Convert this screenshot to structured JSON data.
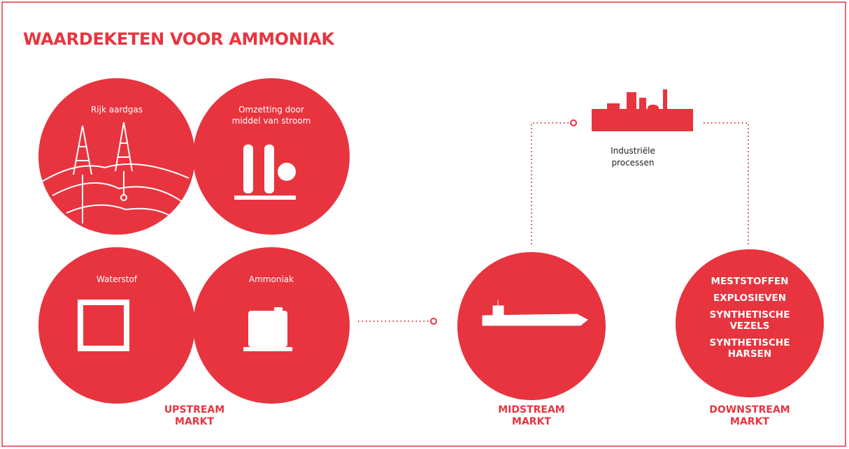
{
  "header": {
    "title": "WAARDEKETEN VOOR AMMONIAK"
  },
  "nodes": [
    {
      "label": "Rijk aardgas"
    },
    {
      "label": "Omzetting door middel van stroom"
    },
    {
      "label": "Waterstof"
    },
    {
      "label": "Ammoniak"
    },
    {
      "label": "Industriële processen"
    }
  ],
  "downstream_products": [
    "MESTSTOFFEN",
    "EXPLOSIEVEN",
    "SYNTHETISCHE VEZELS",
    "SYNTHETISCHE HARSEN"
  ],
  "markets": [
    "UPSTREAM MARKT",
    "MIDSTREAM MARKT",
    "DOWNSTREAM MARKT"
  ]
}
